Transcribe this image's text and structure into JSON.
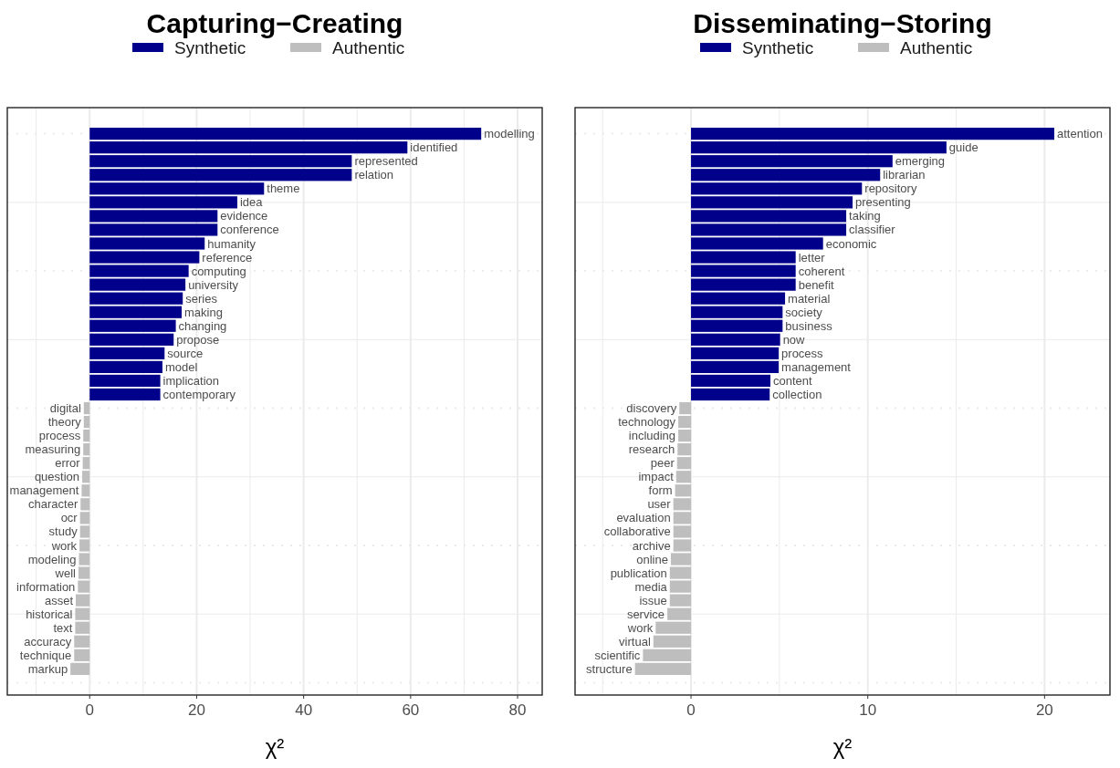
{
  "chart_data": [
    {
      "type": "bar",
      "orientation": "horizontal",
      "title": "Capturing−Creating",
      "xlabel": "χ²",
      "legend": "top",
      "grid": true,
      "categories": [
        "modelling",
        "identified",
        "represented",
        "relation",
        "theme",
        "idea",
        "evidence",
        "conference",
        "humanity",
        "reference",
        "computing",
        "university",
        "series",
        "making",
        "changing",
        "propose",
        "source",
        "model",
        "implication",
        "contemporary",
        "digital",
        "theory",
        "process",
        "measuring",
        "error",
        "question",
        "management",
        "character",
        "ocr",
        "study",
        "work",
        "modeling",
        "well",
        "information",
        "asset",
        "historical",
        "text",
        "accuracy",
        "technique",
        "markup"
      ],
      "series": [
        {
          "name": "Synthetic",
          "color": "#00008b",
          "values": [
            73.2,
            59.4,
            49.0,
            49.0,
            32.6,
            27.6,
            23.9,
            23.9,
            21.5,
            20.5,
            18.5,
            17.9,
            17.4,
            17.2,
            16.1,
            15.7,
            14.0,
            13.6,
            13.2,
            13.2,
            null,
            null,
            null,
            null,
            null,
            null,
            null,
            null,
            null,
            null,
            null,
            null,
            null,
            null,
            null,
            null,
            null,
            null,
            null,
            null
          ]
        },
        {
          "name": "Authentic",
          "color": "#bebebe",
          "values": [
            null,
            null,
            null,
            null,
            null,
            null,
            null,
            null,
            null,
            null,
            null,
            null,
            null,
            null,
            null,
            null,
            null,
            null,
            null,
            null,
            -1.1,
            -1.1,
            -1.2,
            -1.2,
            -1.3,
            -1.4,
            -1.5,
            -1.7,
            -1.8,
            -1.8,
            -1.9,
            -2.0,
            -2.1,
            -2.2,
            -2.6,
            -2.7,
            -2.7,
            -2.9,
            -2.9,
            -3.6
          ]
        }
      ],
      "xlim": [
        -15.4,
        84.6
      ],
      "xticks": [
        0,
        20,
        40,
        60,
        80
      ]
    },
    {
      "type": "bar",
      "orientation": "horizontal",
      "title": "Disseminating−Storing",
      "xlabel": "χ²",
      "legend": "top",
      "grid": true,
      "categories": [
        "attention",
        "guide",
        "emerging",
        "librarian",
        "repository",
        "presenting",
        "taking",
        "classifier",
        "economic",
        "letter",
        "coherent",
        "benefit",
        "material",
        "society",
        "business",
        "now",
        "process",
        "management",
        "content",
        "collection",
        "discovery",
        "technology",
        "including",
        "research",
        "peer",
        "impact",
        "form",
        "user",
        "evaluation",
        "collaborative",
        "archive",
        "online",
        "publication",
        "media",
        "issue",
        "service",
        "work",
        "virtual",
        "scientific",
        "structure"
      ],
      "series": [
        {
          "name": "Synthetic",
          "color": "#00008b",
          "values": [
            20.55,
            14.45,
            11.4,
            10.7,
            9.67,
            9.14,
            8.78,
            8.78,
            7.47,
            5.92,
            5.92,
            5.92,
            5.32,
            5.18,
            5.18,
            5.04,
            4.96,
            4.96,
            4.49,
            4.45,
            null,
            null,
            null,
            null,
            null,
            null,
            null,
            null,
            null,
            null,
            null,
            null,
            null,
            null,
            null,
            null,
            null,
            null,
            null,
            null
          ]
        },
        {
          "name": "Authentic",
          "color": "#bebebe",
          "values": [
            null,
            null,
            null,
            null,
            null,
            null,
            null,
            null,
            null,
            null,
            null,
            null,
            null,
            null,
            null,
            null,
            null,
            null,
            null,
            null,
            -0.66,
            -0.72,
            -0.72,
            -0.76,
            -0.79,
            -0.84,
            -0.9,
            -1.0,
            -1.0,
            -1.0,
            -1.0,
            -1.14,
            -1.2,
            -1.2,
            -1.2,
            -1.34,
            -2.0,
            -2.13,
            -2.72,
            -3.17
          ]
        }
      ],
      "xlim": [
        -6.56,
        23.7
      ],
      "xticks": [
        0,
        10,
        20
      ]
    }
  ]
}
